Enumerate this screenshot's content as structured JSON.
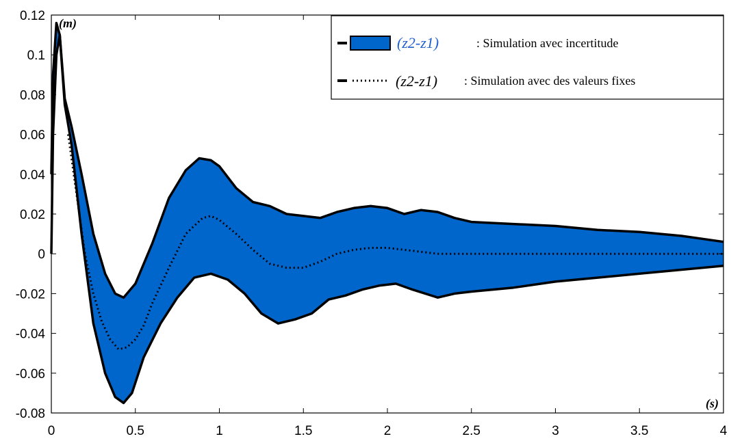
{
  "chart_data": {
    "type": "area",
    "title": "",
    "xlabel": "",
    "ylabel": "",
    "x_unit": "(s)",
    "y_unit": "(m)",
    "xlim": [
      0,
      4
    ],
    "ylim": [
      -0.08,
      0.12
    ],
    "x_ticks": [
      "0",
      "0.5",
      "1",
      "1.5",
      "2",
      "2.5",
      "3",
      "3.5",
      "4"
    ],
    "y_ticks": [
      "-0.08",
      "-0.06",
      "-0.04",
      "-0.02",
      "0",
      "0.02",
      "0.04",
      "0.06",
      "0.08",
      "0.1",
      "0.12"
    ],
    "grid": false,
    "legend_position": "top-right",
    "colors": {
      "band_fill": "#0066cc",
      "band_edge": "#000000",
      "center_line": "#000000",
      "legend_math": "#1f5fcf"
    },
    "legend": [
      {
        "symbol": "(z2-z1)",
        "label": ": Simulation avec incertitude",
        "style": "filled-band"
      },
      {
        "symbol": "(z2-z1)",
        "label": ": Simulation avec des valeurs fixes",
        "style": "dotted-line"
      }
    ],
    "series": [
      {
        "style": "band-upper",
        "x": [
          0,
          0.01,
          0.03,
          0.05,
          0.08,
          0.12,
          0.18,
          0.25,
          0.32,
          0.38,
          0.43,
          0.5,
          0.6,
          0.7,
          0.8,
          0.88,
          0.95,
          1.0,
          1.1,
          1.2,
          1.3,
          1.4,
          1.5,
          1.6,
          1.7,
          1.8,
          1.9,
          2.0,
          2.1,
          2.2,
          2.3,
          2.4,
          2.5,
          2.75,
          3.0,
          3.25,
          3.5,
          3.75,
          4.0
        ],
        "y": [
          0.04,
          0.09,
          0.116,
          0.11,
          0.078,
          0.064,
          0.04,
          0.01,
          -0.01,
          -0.02,
          -0.022,
          -0.015,
          0.005,
          0.028,
          0.042,
          0.048,
          0.047,
          0.044,
          0.033,
          0.026,
          0.024,
          0.02,
          0.019,
          0.018,
          0.021,
          0.023,
          0.024,
          0.023,
          0.02,
          0.022,
          0.021,
          0.018,
          0.016,
          0.015,
          0.014,
          0.012,
          0.011,
          0.009,
          0.006
        ]
      },
      {
        "style": "band-lower",
        "x": [
          0,
          0.01,
          0.03,
          0.05,
          0.08,
          0.12,
          0.18,
          0.25,
          0.32,
          0.38,
          0.43,
          0.48,
          0.55,
          0.65,
          0.75,
          0.85,
          0.95,
          1.05,
          1.15,
          1.25,
          1.35,
          1.45,
          1.55,
          1.65,
          1.75,
          1.85,
          1.95,
          2.05,
          2.15,
          2.3,
          2.4,
          2.5,
          2.75,
          3.0,
          3.25,
          3.5,
          3.75,
          4.0
        ],
        "y": [
          0.0,
          0.06,
          0.1,
          0.11,
          0.075,
          0.055,
          0.01,
          -0.035,
          -0.06,
          -0.072,
          -0.075,
          -0.07,
          -0.052,
          -0.035,
          -0.022,
          -0.012,
          -0.01,
          -0.013,
          -0.02,
          -0.03,
          -0.035,
          -0.033,
          -0.03,
          -0.023,
          -0.021,
          -0.018,
          -0.016,
          -0.015,
          -0.018,
          -0.022,
          -0.02,
          -0.019,
          -0.017,
          -0.014,
          -0.012,
          -0.01,
          -0.008,
          -0.006
        ]
      },
      {
        "style": "dotted-center",
        "x": [
          0.1,
          0.15,
          0.2,
          0.25,
          0.3,
          0.35,
          0.4,
          0.45,
          0.5,
          0.55,
          0.6,
          0.7,
          0.8,
          0.9,
          0.95,
          1.0,
          1.1,
          1.2,
          1.3,
          1.4,
          1.5,
          1.6,
          1.7,
          1.8,
          1.9,
          1.95,
          2.0,
          2.1,
          2.2,
          2.3,
          2.5,
          2.75,
          3.0,
          3.5,
          4.0
        ],
        "y": [
          0.06,
          0.03,
          0.0,
          -0.02,
          -0.034,
          -0.043,
          -0.048,
          -0.047,
          -0.043,
          -0.036,
          -0.025,
          -0.007,
          0.01,
          0.018,
          0.019,
          0.017,
          0.01,
          0.002,
          -0.005,
          -0.007,
          -0.007,
          -0.004,
          0.0,
          0.002,
          0.003,
          0.003,
          0.003,
          0.002,
          0.001,
          0.0,
          0.0,
          0.0,
          0.0,
          0.0,
          0.0
        ]
      }
    ]
  }
}
